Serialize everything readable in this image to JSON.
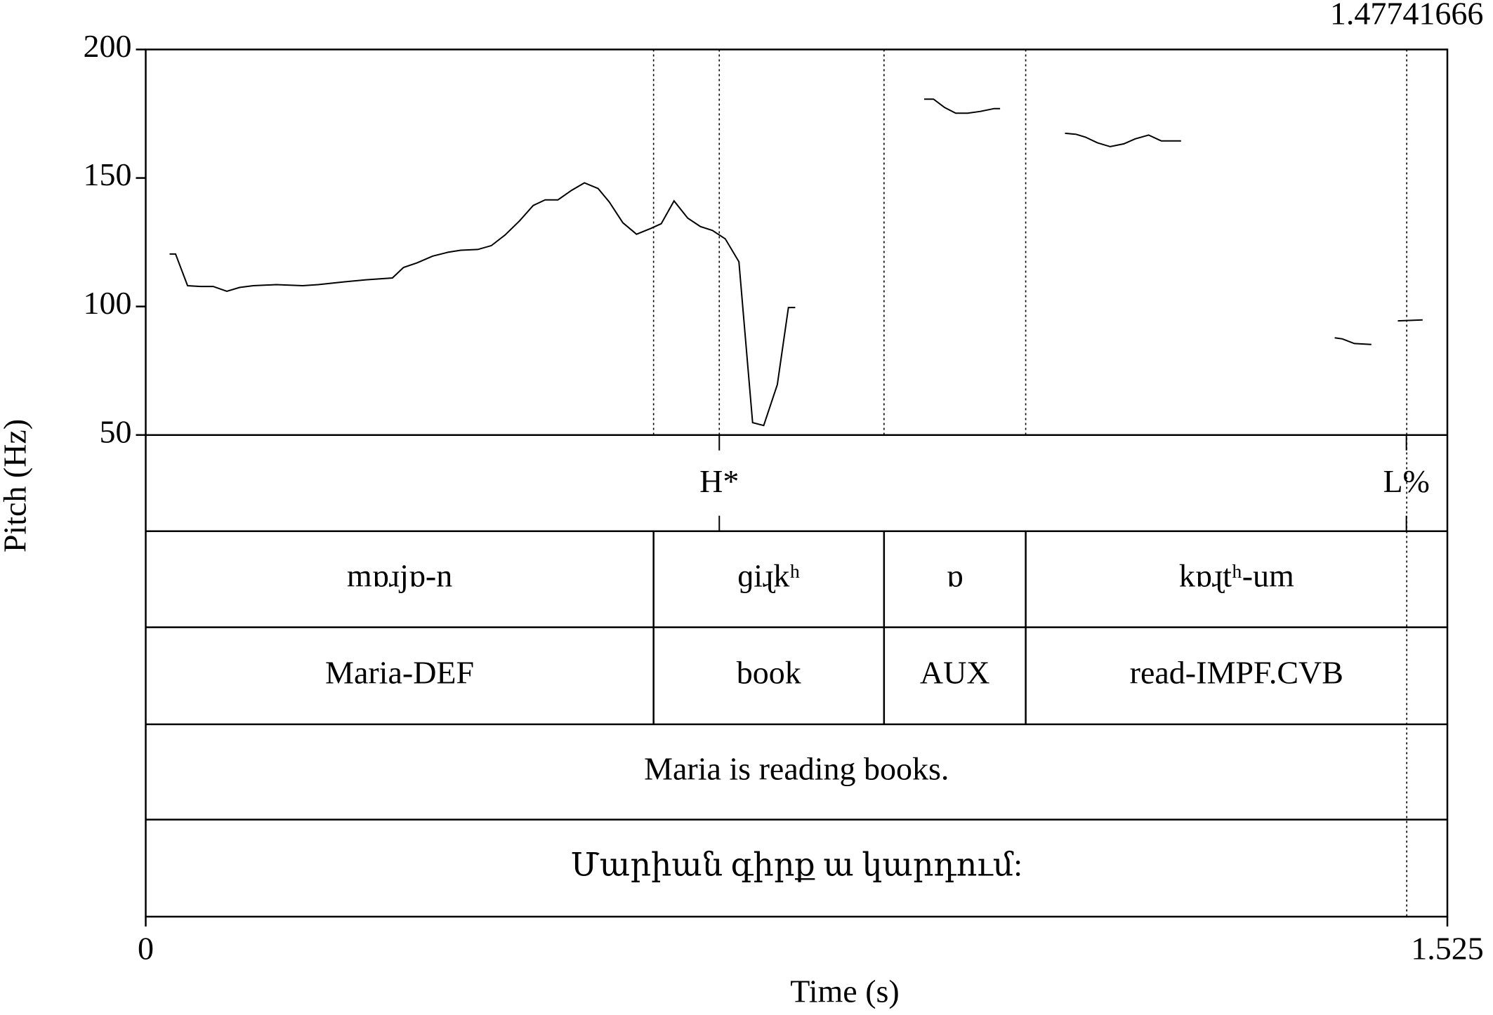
{
  "chart_data": {
    "type": "line",
    "ylabel": "Pitch (Hz)",
    "xlabel": "Time (s)",
    "xlim": [
      0,
      1.525
    ],
    "xticks": [
      0,
      1.525
    ],
    "ylim": [
      50,
      200
    ],
    "yticks": [
      50,
      100,
      150,
      200
    ],
    "cursor": 1.47741666,
    "color": "#000000",
    "x": [
      0.028,
      0.035,
      0.049,
      0.064,
      0.079,
      0.095,
      0.11,
      0.126,
      0.153,
      0.184,
      0.202,
      0.233,
      0.258,
      0.289,
      0.302,
      0.318,
      0.336,
      0.354,
      0.369,
      0.389,
      0.405,
      0.421,
      0.438,
      0.454,
      0.468,
      0.483,
      0.499,
      0.514,
      0.53,
      0.543,
      0.559,
      0.575,
      0.592,
      0.604,
      0.619,
      0.635,
      0.65,
      0.664,
      0.679,
      0.695,
      0.711,
      0.724,
      0.74,
      0.753,
      0.761,
      null,
      0.912,
      0.923,
      0.936,
      0.949,
      0.963,
      0.978,
      0.994,
      1.001,
      null,
      1.077,
      1.09,
      1.101,
      1.115,
      1.13,
      1.146,
      1.159,
      1.175,
      1.19,
      1.213,
      null,
      1.393,
      1.402,
      1.416,
      1.436,
      null,
      1.467,
      1.496
    ],
    "values": [
      120.4,
      120.4,
      108.1,
      107.8,
      107.8,
      105.9,
      107.4,
      108.1,
      108.5,
      108.1,
      108.5,
      109.6,
      110.4,
      111.1,
      115.2,
      117.0,
      119.6,
      121.1,
      121.9,
      122.2,
      123.7,
      127.8,
      133.3,
      139.3,
      141.5,
      141.5,
      145.2,
      148.1,
      145.9,
      140.7,
      132.6,
      128.1,
      130.4,
      132.2,
      141.1,
      134.4,
      131.1,
      129.6,
      126.3,
      117.4,
      54.8,
      53.7,
      69.6,
      99.6,
      99.6,
      null,
      180.7,
      180.7,
      177.4,
      175.2,
      175.2,
      175.9,
      177.0,
      177.0,
      null,
      167.4,
      167.0,
      165.9,
      163.7,
      162.2,
      163.3,
      165.2,
      166.7,
      164.4,
      164.4,
      null,
      87.8,
      87.4,
      85.6,
      85.2,
      null,
      94.4,
      94.8
    ],
    "tones": {
      "times": [
        0.672,
        1.477
      ],
      "labels": [
        "H*",
        "L%"
      ]
    },
    "tiers": [
      {
        "boundaries": [
          0.595,
          0.865,
          1.031
        ],
        "labels": [
          "mɒɹjɒ-n",
          "ɡiɻkʰ",
          "ɒ",
          "kɒɻtʰ-um"
        ]
      },
      {
        "boundaries": [
          0.595,
          0.865,
          1.031
        ],
        "labels": [
          "Maria-DEF",
          "book",
          "AUX",
          "read-IMPF.CVB"
        ]
      },
      {
        "boundaries": [],
        "labels": [
          "Maria is reading books."
        ]
      },
      {
        "boundaries": [],
        "labels": [
          "Մարիան գիրք ա կարդում:"
        ]
      }
    ]
  }
}
